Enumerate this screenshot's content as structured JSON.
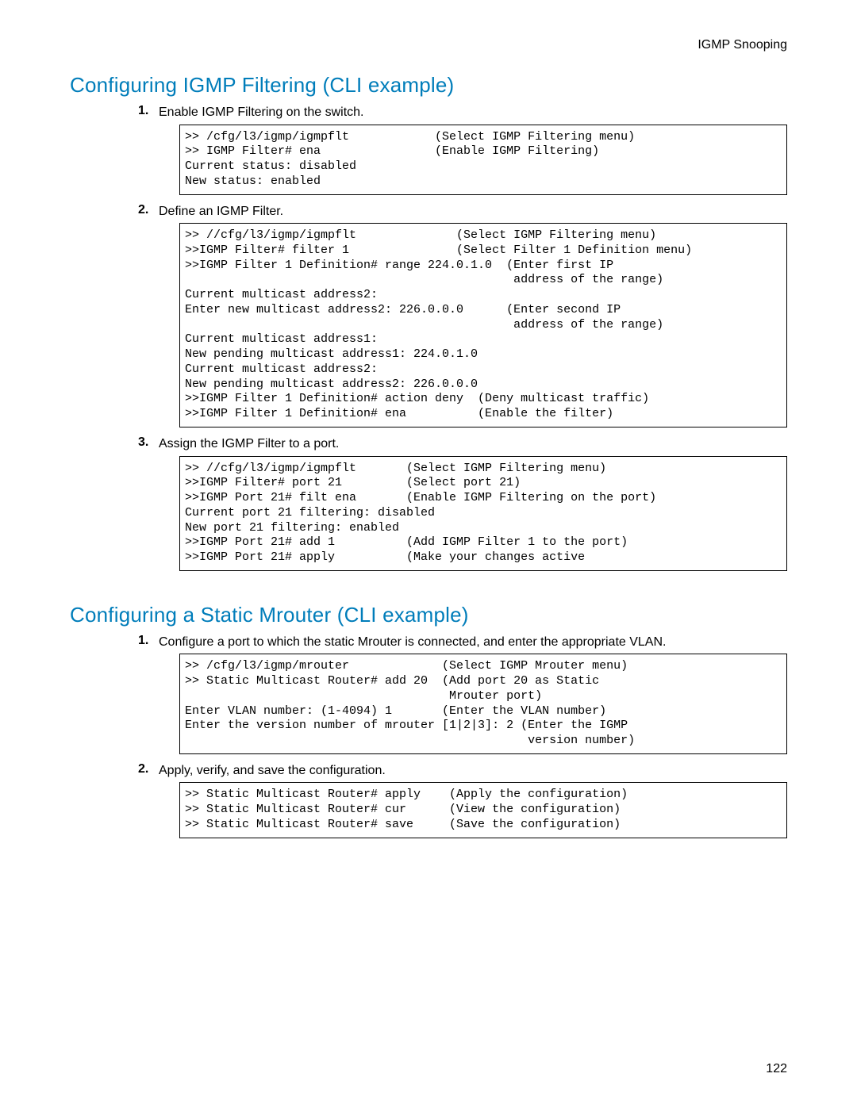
{
  "header": {
    "category": "IGMP Snooping"
  },
  "page_number": "122",
  "sections": [
    {
      "title": "Configuring IGMP Filtering (CLI example)",
      "steps": [
        {
          "num": "1.",
          "text": "Enable IGMP Filtering on the switch.",
          "code": ">> /cfg/l3/igmp/igmpflt            (Select IGMP Filtering menu)\n>> IGMP Filter# ena                (Enable IGMP Filtering)\nCurrent status: disabled\nNew status: enabled"
        },
        {
          "num": "2.",
          "text": "Define an IGMP Filter.",
          "code": ">> //cfg/l3/igmp/igmpflt              (Select IGMP Filtering menu)\n>>IGMP Filter# filter 1               (Select Filter 1 Definition menu)\n>>IGMP Filter 1 Definition# range 224.0.1.0  (Enter first IP\n                                              address of the range)\nCurrent multicast address2:\nEnter new multicast address2: 226.0.0.0      (Enter second IP\n                                              address of the range)\nCurrent multicast address1:\nNew pending multicast address1: 224.0.1.0\nCurrent multicast address2:\nNew pending multicast address2: 226.0.0.0\n>>IGMP Filter 1 Definition# action deny  (Deny multicast traffic)\n>>IGMP Filter 1 Definition# ena          (Enable the filter)"
        },
        {
          "num": "3.",
          "text": "Assign the IGMP Filter to a port.",
          "code": ">> //cfg/l3/igmp/igmpflt       (Select IGMP Filtering menu)\n>>IGMP Filter# port 21         (Select port 21)\n>>IGMP Port 21# filt ena       (Enable IGMP Filtering on the port)\nCurrent port 21 filtering: disabled\nNew port 21 filtering: enabled\n>>IGMP Port 21# add 1          (Add IGMP Filter 1 to the port)\n>>IGMP Port 21# apply          (Make your changes active"
        }
      ]
    },
    {
      "title": "Configuring a Static Mrouter (CLI example)",
      "steps": [
        {
          "num": "1.",
          "text": "Configure a port to which the static Mrouter is connected, and enter the appropriate VLAN.",
          "code": ">> /cfg/l3/igmp/mrouter             (Select IGMP Mrouter menu)\n>> Static Multicast Router# add 20  (Add port 20 as Static\n                                     Mrouter port)\nEnter VLAN number: (1-4094) 1       (Enter the VLAN number)\nEnter the version number of mrouter [1|2|3]: 2 (Enter the IGMP\n                                                version number)"
        },
        {
          "num": "2.",
          "text": "Apply, verify, and save the configuration.",
          "code": ">> Static Multicast Router# apply    (Apply the configuration)\n>> Static Multicast Router# cur      (View the configuration)\n>> Static Multicast Router# save     (Save the configuration)"
        }
      ]
    }
  ],
  "style": {
    "heading_color": "#007dba",
    "text_color": "#000000",
    "code_font": "Courier New",
    "body_font": "Segoe UI",
    "border_color": "#000000",
    "background": "#ffffff",
    "heading_fontsize_pt": 20,
    "body_fontsize_pt": 12,
    "code_fontsize_pt": 11
  }
}
